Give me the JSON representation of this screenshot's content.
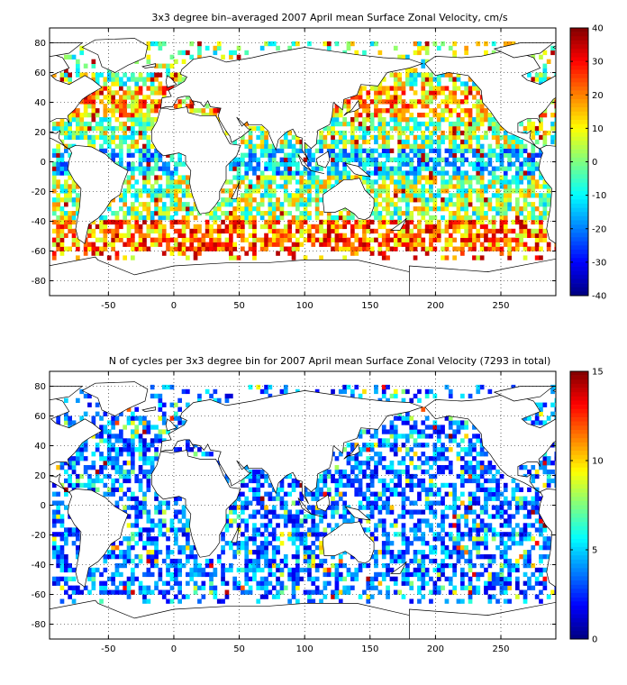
{
  "chart_data": [
    {
      "type": "heatmap",
      "title": "3x3 degree bin–averaged 2007 April mean Surface Zonal Velocity, cm/s",
      "xlim": [
        -95,
        292
      ],
      "ylim": [
        -90,
        90
      ],
      "x_ticks": [
        "-50",
        "0",
        "50",
        "100",
        "150",
        "200",
        "250"
      ],
      "x_tick_values": [
        -50,
        0,
        50,
        100,
        150,
        200,
        250
      ],
      "y_ticks": [
        "80",
        "60",
        "40",
        "20",
        "0",
        "-20",
        "-40",
        "-60",
        "-80"
      ],
      "y_tick_values": [
        80,
        60,
        40,
        20,
        0,
        -20,
        -40,
        -60,
        -80
      ],
      "grid": true,
      "colorbar": {
        "min": -40,
        "max": 40,
        "ticks": [
          "40",
          "30",
          "20",
          "10",
          "0",
          "-10",
          "-20",
          "-30",
          "-40"
        ],
        "tick_values": [
          40,
          30,
          20,
          10,
          0,
          -10,
          -20,
          -30,
          -40
        ],
        "colormap": "jet"
      }
    },
    {
      "type": "heatmap",
      "title": "N of cycles per 3x3 degree bin for 2007 April mean Surface Zonal Velocity (7293 in total)",
      "xlim": [
        -95,
        292
      ],
      "ylim": [
        -90,
        90
      ],
      "x_ticks": [
        "-50",
        "0",
        "50",
        "100",
        "150",
        "200",
        "250"
      ],
      "x_tick_values": [
        -50,
        0,
        50,
        100,
        150,
        200,
        250
      ],
      "y_ticks": [
        "80",
        "60",
        "40",
        "20",
        "0",
        "-20",
        "-40",
        "-60",
        "-80"
      ],
      "y_tick_values": [
        80,
        60,
        40,
        20,
        0,
        -20,
        -40,
        -60,
        -80
      ],
      "grid": true,
      "colorbar": {
        "min": 0,
        "max": 15,
        "ticks": [
          "15",
          "10",
          "5",
          "0"
        ],
        "tick_values": [
          15,
          10,
          5,
          0
        ],
        "colormap": "jet"
      }
    }
  ]
}
